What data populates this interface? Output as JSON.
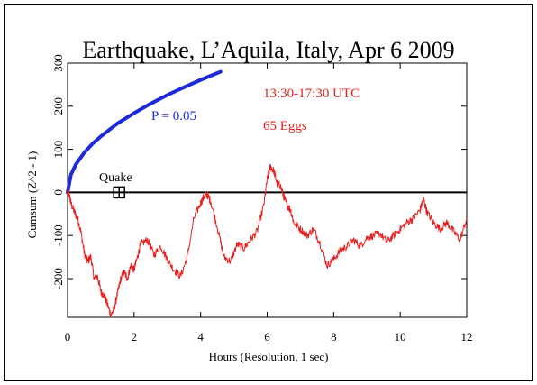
{
  "chart_data": {
    "type": "line",
    "title": "Earthquake, L’Aquila, Italy, Apr 6 2009",
    "xlabel": "Hours (Resolution, 1 sec)",
    "ylabel": "Cumsum (Z^2 - 1)",
    "xlim": [
      0,
      12
    ],
    "ylim": [
      -290,
      300
    ],
    "xticks": [
      0,
      2,
      4,
      6,
      8,
      10,
      12
    ],
    "yticks": [
      -200,
      -100,
      0,
      100,
      200,
      300
    ],
    "xtick_labels": [
      "0",
      "2",
      "4",
      "6",
      "8",
      "10",
      "12"
    ],
    "ytick_labels": [
      "-200",
      "-100",
      "0",
      "100",
      "200",
      "300"
    ],
    "annotations": {
      "time_range": "13:30-17:30 UTC",
      "eggs": "65 Eggs",
      "p_label": "P = 0.05",
      "quake_label": "Quake"
    },
    "colors": {
      "cumsum": "#e8201e",
      "probability": "#1d2ad8",
      "text_red": "#e8201e",
      "text_blue": "#1d2ad8",
      "axes": "#000000"
    },
    "quake_marker": {
      "x": 1.55,
      "y": 0
    },
    "series": [
      {
        "style": "probability-envelope",
        "x": [
          0,
          0.1,
          0.25,
          0.5,
          0.75,
          1.0,
          1.5,
          2.0,
          2.5,
          3.0,
          3.5,
          4.0,
          4.5,
          4.6
        ],
        "y": [
          0,
          41,
          65,
          92,
          113,
          130,
          160,
          184,
          206,
          226,
          244,
          261,
          277,
          280
        ]
      },
      {
        "style": "cumsum",
        "x": [
          0,
          0.05,
          0.1,
          0.2,
          0.3,
          0.4,
          0.5,
          0.6,
          0.7,
          0.8,
          0.9,
          1.0,
          1.1,
          1.2,
          1.3,
          1.4,
          1.5,
          1.6,
          1.7,
          1.8,
          1.9,
          2.0,
          2.1,
          2.2,
          2.4,
          2.6,
          2.8,
          3.0,
          3.2,
          3.4,
          3.6,
          3.8,
          4.0,
          4.1,
          4.2,
          4.3,
          4.5,
          4.7,
          4.9,
          5.1,
          5.3,
          5.5,
          5.7,
          5.9,
          6.0,
          6.1,
          6.2,
          6.3,
          6.4,
          6.5,
          6.6,
          6.7,
          6.8,
          7.0,
          7.2,
          7.4,
          7.6,
          7.8,
          8.0,
          8.2,
          8.4,
          8.6,
          8.8,
          9.0,
          9.2,
          9.4,
          9.6,
          9.8,
          10.0,
          10.2,
          10.4,
          10.6,
          10.7,
          10.8,
          11.0,
          11.2,
          11.4,
          11.6,
          11.8,
          12.0
        ],
        "y": [
          0,
          -5,
          -25,
          -45,
          -60,
          -90,
          -140,
          -160,
          -150,
          -200,
          -195,
          -230,
          -240,
          -260,
          -285,
          -270,
          -235,
          -200,
          -185,
          -200,
          -170,
          -180,
          -150,
          -120,
          -110,
          -145,
          -125,
          -155,
          -180,
          -195,
          -150,
          -60,
          -25,
          -10,
          -5,
          -20,
          -80,
          -150,
          -160,
          -120,
          -130,
          -110,
          -90,
          -30,
          30,
          60,
          50,
          20,
          15,
          -10,
          -30,
          -40,
          -70,
          -85,
          -100,
          -85,
          -120,
          -170,
          -155,
          -135,
          -125,
          -110,
          -125,
          -105,
          -100,
          -95,
          -115,
          -100,
          -85,
          -70,
          -60,
          -40,
          -15,
          -45,
          -70,
          -85,
          -70,
          -90,
          -110,
          -60
        ]
      }
    ]
  }
}
